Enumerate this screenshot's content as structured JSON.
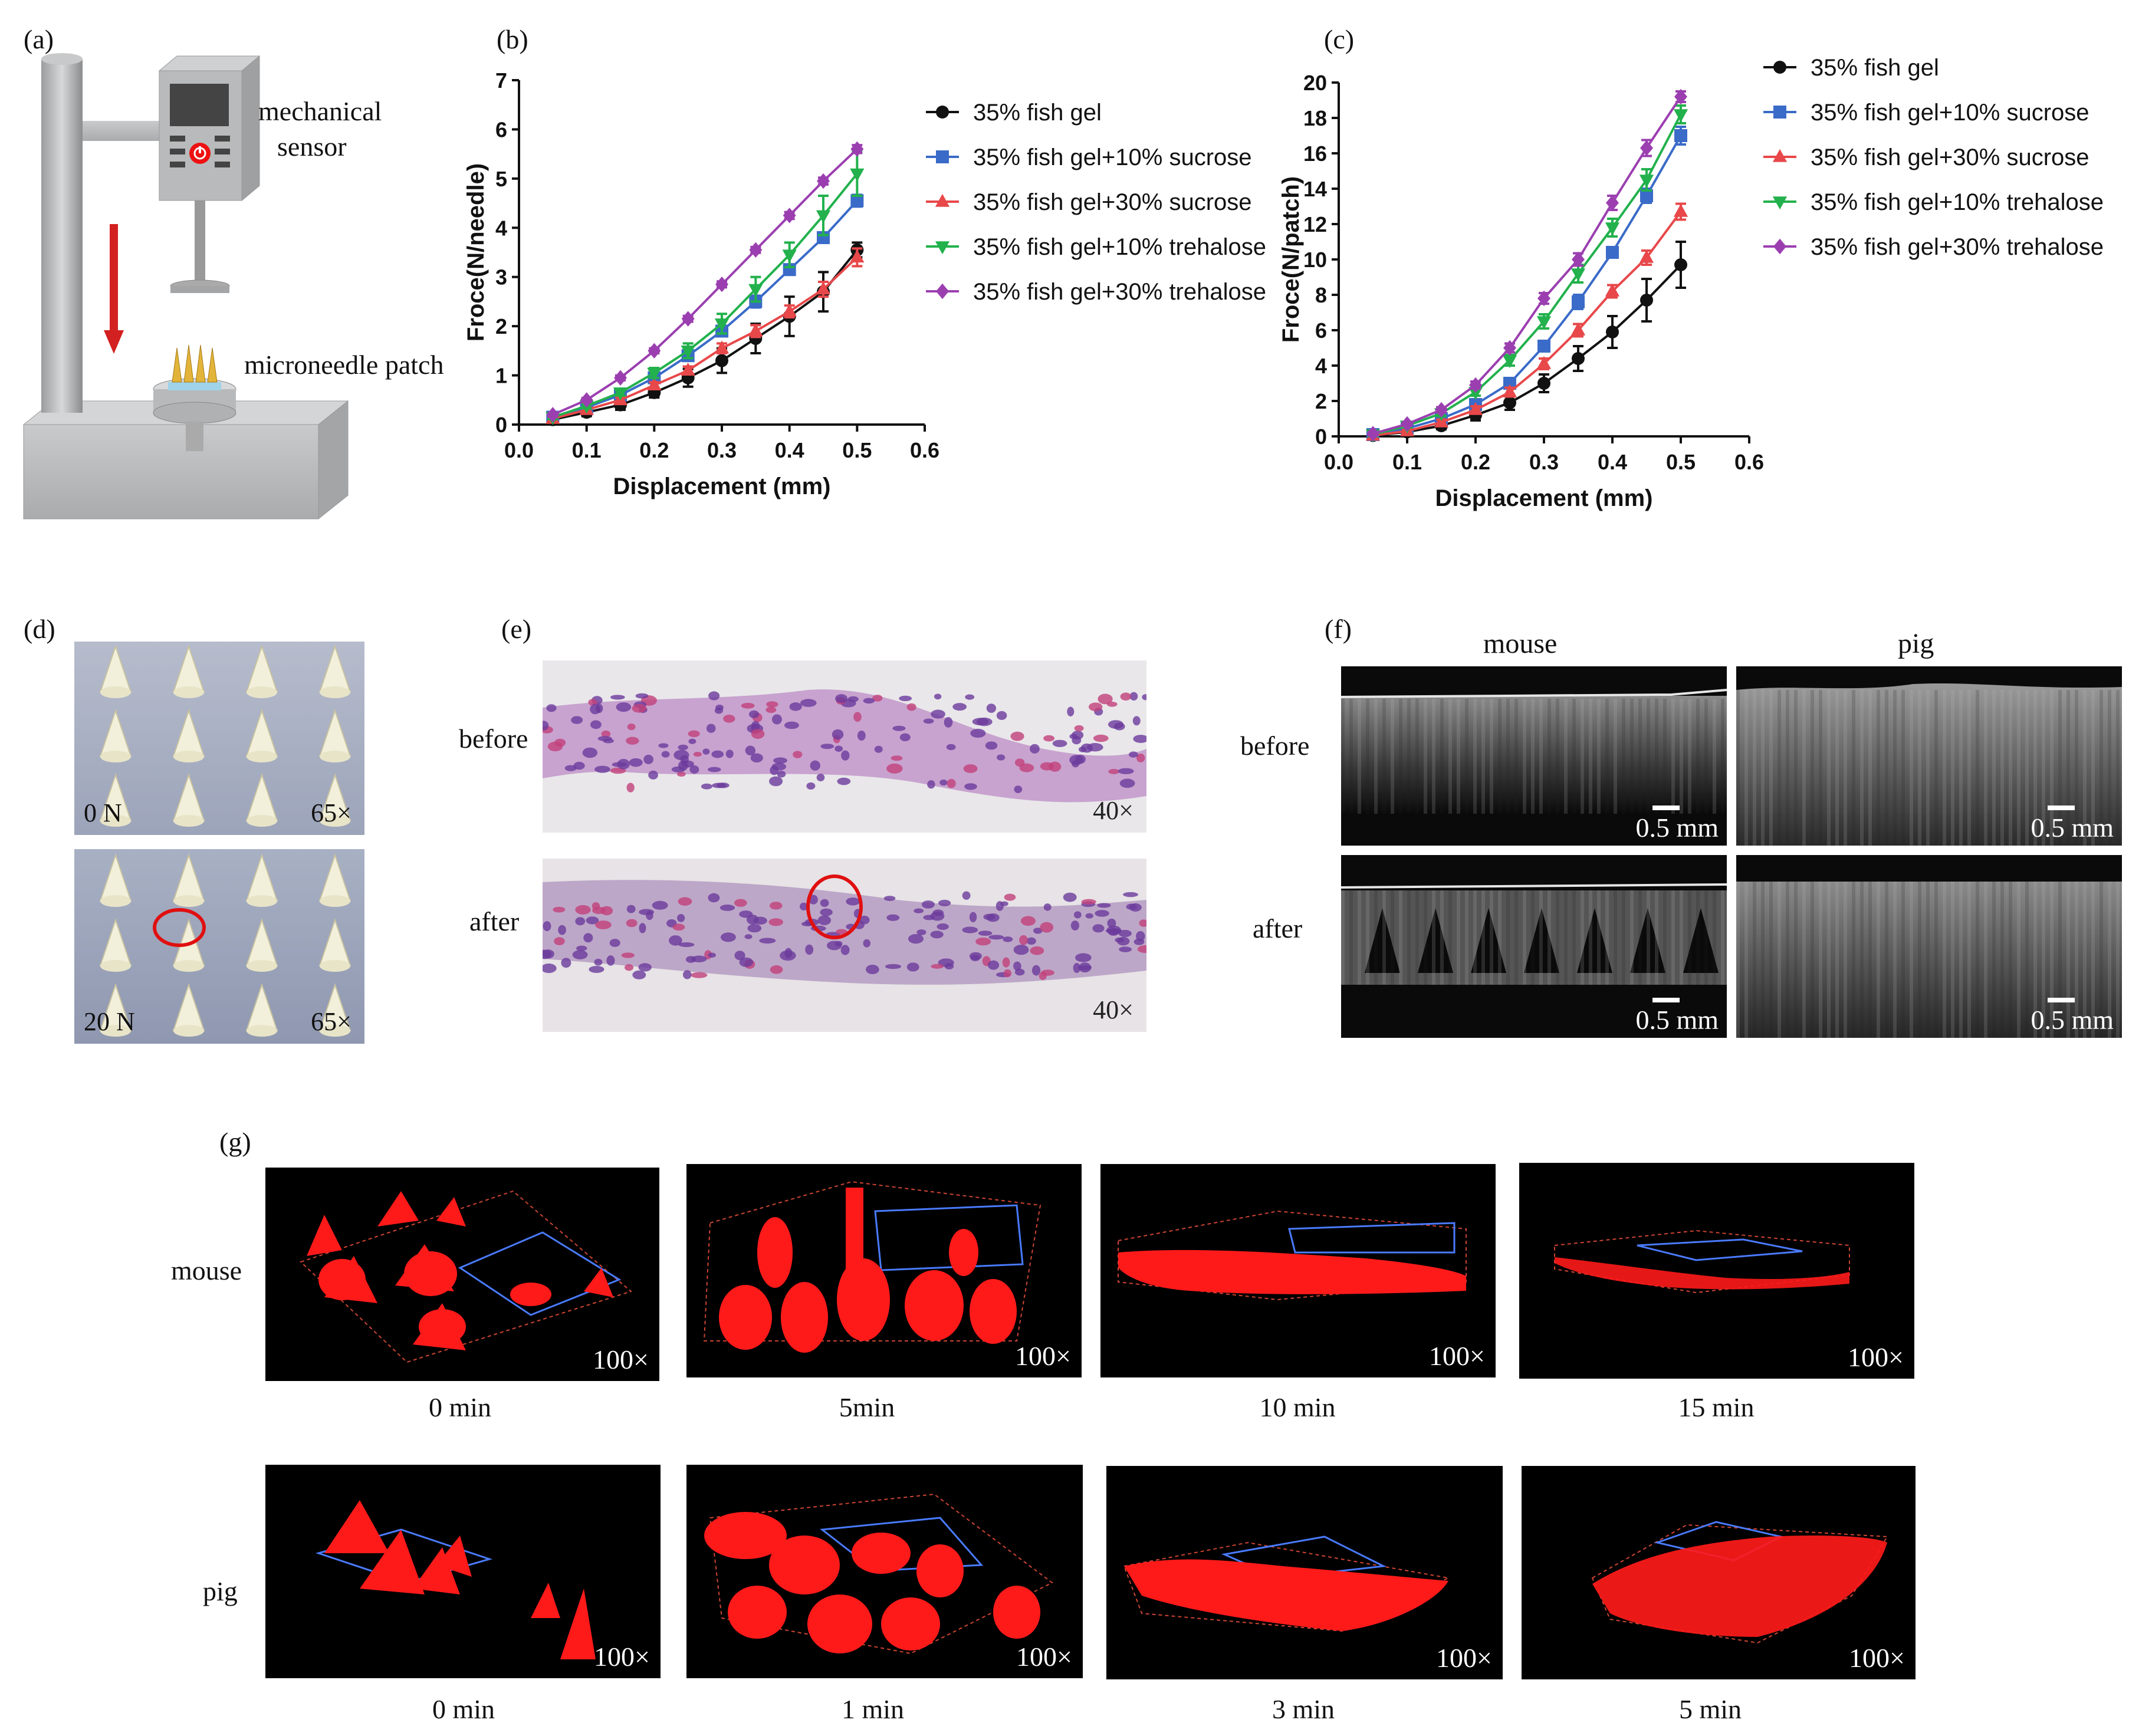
{
  "panels": {
    "a": {
      "label": "(a)",
      "sensor_label_line1": "mechanical",
      "sensor_label_line2": "sensor",
      "patch_label": "microneedle patch"
    },
    "d": {
      "label": "(d)",
      "top_force": "0 N",
      "top_mag": "65×",
      "bottom_force": "20 N",
      "bottom_mag": "65×"
    },
    "e": {
      "label": "(e)",
      "before": "before",
      "after": "after",
      "mag_top": "40×",
      "mag_bottom": "40×"
    },
    "f": {
      "label": "(f)",
      "col_mouse": "mouse",
      "col_pig": "pig",
      "row_before": "before",
      "row_after": "after",
      "scale": "0.5 mm"
    },
    "g": {
      "label": "(g)",
      "row_mouse": "mouse",
      "row_pig": "pig",
      "mag": "100×",
      "mouse_times": [
        "0 min",
        "5min",
        "10 min",
        "15 min"
      ],
      "pig_times": [
        "0 min",
        "1 min",
        "3 min",
        "5 min"
      ]
    }
  },
  "colors": {
    "black": "#111111",
    "blue": "#3a6bc8",
    "red": "#e8484a",
    "green": "#22b14c",
    "purple": "#9b3fb0",
    "fluor_red": "#ff1a1a"
  },
  "chart_data": [
    {
      "panel": "(b)",
      "type": "line",
      "xlabel": "Displacement (mm)",
      "ylabel": "Froce(N/needle)",
      "xlim": [
        0.0,
        0.6
      ],
      "ylim": [
        0,
        7
      ],
      "xticks": [
        "0.0",
        "0.1",
        "0.2",
        "0.3",
        "0.4",
        "0.5",
        "0.6"
      ],
      "yticks": [
        "0",
        "1",
        "2",
        "3",
        "4",
        "5",
        "6",
        "7"
      ],
      "x": [
        0.05,
        0.1,
        0.15,
        0.2,
        0.25,
        0.3,
        0.35,
        0.4,
        0.45,
        0.5
      ],
      "series": [
        {
          "name": "35% fish gel",
          "marker": "circle",
          "color": "#111111",
          "values": [
            0.1,
            0.25,
            0.4,
            0.65,
            0.95,
            1.3,
            1.75,
            2.2,
            2.7,
            3.55
          ],
          "errors": [
            0.05,
            0.08,
            0.1,
            0.1,
            0.18,
            0.25,
            0.3,
            0.4,
            0.4,
            0.15
          ]
        },
        {
          "name": "35% fish gel+10% sucrose",
          "marker": "square",
          "color": "#3a6bc8",
          "values": [
            0.15,
            0.35,
            0.6,
            0.95,
            1.4,
            1.9,
            2.5,
            3.15,
            3.8,
            4.55
          ],
          "errors": [
            0.04,
            0.05,
            0.06,
            0.08,
            0.1,
            0.1,
            0.12,
            0.1,
            0.1,
            0.12
          ]
        },
        {
          "name": "35% fish gel+30% sucrose",
          "marker": "triangle",
          "color": "#e8484a",
          "values": [
            0.12,
            0.3,
            0.5,
            0.8,
            1.1,
            1.55,
            1.9,
            2.3,
            2.75,
            3.4
          ],
          "errors": [
            0.03,
            0.04,
            0.05,
            0.06,
            0.08,
            0.1,
            0.12,
            0.12,
            0.15,
            0.18
          ]
        },
        {
          "name": "35% fish gel+10% trehalose",
          "marker": "triangle-down",
          "color": "#22b14c",
          "values": [
            0.15,
            0.38,
            0.65,
            1.05,
            1.5,
            2.05,
            2.75,
            3.45,
            4.25,
            5.1
          ],
          "errors": [
            0.04,
            0.05,
            0.06,
            0.1,
            0.15,
            0.2,
            0.25,
            0.25,
            0.4,
            0.45
          ]
        },
        {
          "name": "35% fish gel+30% trehalose",
          "marker": "diamond",
          "color": "#9b3fb0",
          "values": [
            0.2,
            0.5,
            0.95,
            1.5,
            2.15,
            2.85,
            3.55,
            4.25,
            4.95,
            5.6
          ],
          "errors": [
            0.03,
            0.04,
            0.05,
            0.05,
            0.06,
            0.06,
            0.06,
            0.07,
            0.07,
            0.08
          ]
        }
      ]
    },
    {
      "panel": "(c)",
      "type": "line",
      "xlabel": "Displacement (mm)",
      "ylabel": "Froce(N/patch)",
      "xlim": [
        0.0,
        0.6
      ],
      "ylim": [
        0,
        20
      ],
      "xticks": [
        "0.0",
        "0.1",
        "0.2",
        "0.3",
        "0.4",
        "0.5",
        "0.6"
      ],
      "yticks": [
        "0",
        "2",
        "4",
        "6",
        "8",
        "10",
        "12",
        "14",
        "16",
        "18",
        "20"
      ],
      "x": [
        0.05,
        0.1,
        0.15,
        0.2,
        0.25,
        0.3,
        0.35,
        0.4,
        0.45,
        0.5
      ],
      "series": [
        {
          "name": "35% fish gel",
          "marker": "circle",
          "color": "#111111",
          "values": [
            0.05,
            0.25,
            0.6,
            1.2,
            1.9,
            3.0,
            4.4,
            5.9,
            7.7,
            9.7
          ],
          "errors": [
            0.1,
            0.15,
            0.2,
            0.3,
            0.4,
            0.5,
            0.7,
            0.9,
            1.2,
            1.3
          ]
        },
        {
          "name": "35% fish gel+10% sucrose",
          "marker": "square",
          "color": "#3a6bc8",
          "values": [
            0.1,
            0.45,
            1.0,
            1.8,
            3.0,
            5.1,
            7.6,
            10.4,
            13.6,
            17.0
          ],
          "errors": [
            0.1,
            0.1,
            0.15,
            0.2,
            0.3,
            0.3,
            0.4,
            0.3,
            0.4,
            0.5
          ]
        },
        {
          "name": "35% fish gel+30% sucrose",
          "marker": "triangle",
          "color": "#e8484a",
          "values": [
            0.05,
            0.3,
            0.8,
            1.5,
            2.5,
            4.1,
            6.0,
            8.2,
            10.1,
            12.7
          ],
          "errors": [
            0.1,
            0.1,
            0.15,
            0.2,
            0.25,
            0.3,
            0.35,
            0.35,
            0.4,
            0.45
          ]
        },
        {
          "name": "35% fish gel+10% trehalose",
          "marker": "triangle-down",
          "color": "#22b14c",
          "values": [
            0.1,
            0.6,
            1.3,
            2.5,
            4.3,
            6.5,
            9.2,
            11.8,
            14.5,
            18.2
          ],
          "errors": [
            0.1,
            0.1,
            0.15,
            0.2,
            0.3,
            0.4,
            0.5,
            0.5,
            0.6,
            0.5
          ]
        },
        {
          "name": "35% fish gel+30% trehalose",
          "marker": "diamond",
          "color": "#9b3fb0",
          "values": [
            0.15,
            0.7,
            1.5,
            2.9,
            5.0,
            7.8,
            10.0,
            13.2,
            16.3,
            19.2
          ],
          "errors": [
            0.1,
            0.1,
            0.15,
            0.2,
            0.25,
            0.3,
            0.35,
            0.4,
            0.45,
            0.3
          ]
        }
      ]
    }
  ]
}
